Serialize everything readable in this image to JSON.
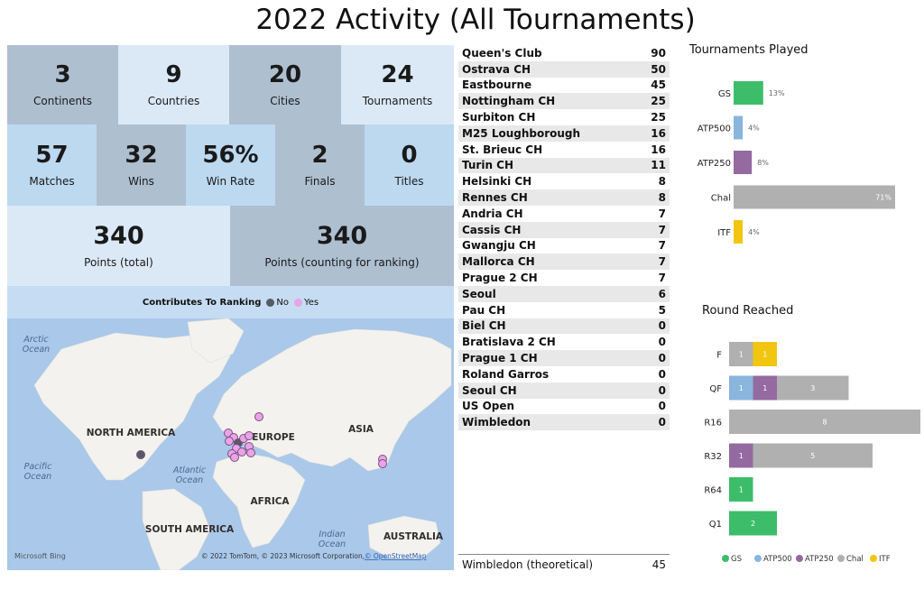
{
  "title": "2022 Activity (All Tournaments)",
  "kpis_row1": [
    {
      "value": "3",
      "label": "Continents"
    },
    {
      "value": "9",
      "label": "Countries"
    },
    {
      "value": "20",
      "label": "Cities"
    },
    {
      "value": "24",
      "label": "Tournaments"
    }
  ],
  "kpis_row2": [
    {
      "value": "57",
      "label": "Matches"
    },
    {
      "value": "32",
      "label": "Wins"
    },
    {
      "value": "56%",
      "label": "Win Rate"
    },
    {
      "value": "2",
      "label": "Finals"
    },
    {
      "value": "0",
      "label": "Titles"
    }
  ],
  "kpis_row3": [
    {
      "value": "340",
      "label": "Points (total)"
    },
    {
      "value": "340",
      "label": "Points (counting for ranking)"
    }
  ],
  "map": {
    "legend_title": "Contributes To Ranking",
    "legend_no": "No",
    "legend_yes": "Yes",
    "colors": {
      "no": "#555a66",
      "yes": "#e9a3e8",
      "land": "#f3f2ee",
      "water": "#a9c8ea"
    },
    "labels": {
      "arctic_ocean": [
        "Arctic",
        "Ocean"
      ],
      "pacific_ocean": [
        "Pacific",
        "Ocean"
      ],
      "atlantic_ocean": [
        "Atlantic",
        "Ocean"
      ],
      "indian_ocean": [
        "Indian",
        "Ocean"
      ],
      "north_america": "NORTH AMERICA",
      "europe": "EUROPE",
      "asia": "ASIA",
      "africa": "AFRICA",
      "south_america": "SOUTH AMERICA",
      "australia": "AUSTRALIA"
    },
    "bing": "Microsoft Bing",
    "copyright": "© 2022 TomTom, © 2023 Microsoft Corporation,",
    "osm": "© OpenStreetMap"
  },
  "points_table": [
    {
      "name": "Queen's Club",
      "points": 90
    },
    {
      "name": "Ostrava CH",
      "points": 50
    },
    {
      "name": "Eastbourne",
      "points": 45
    },
    {
      "name": "Nottingham CH",
      "points": 25
    },
    {
      "name": "Surbiton CH",
      "points": 25
    },
    {
      "name": "M25 Loughborough",
      "points": 16
    },
    {
      "name": "St. Brieuc CH",
      "points": 16
    },
    {
      "name": "Turin CH",
      "points": 11
    },
    {
      "name": "Helsinki CH",
      "points": 8
    },
    {
      "name": "Rennes CH",
      "points": 8
    },
    {
      "name": "Andria CH",
      "points": 7
    },
    {
      "name": "Cassis CH",
      "points": 7
    },
    {
      "name": "Gwangju CH",
      "points": 7
    },
    {
      "name": "Mallorca CH",
      "points": 7
    },
    {
      "name": "Prague 2 CH",
      "points": 7
    },
    {
      "name": "Seoul",
      "points": 6
    },
    {
      "name": "Pau CH",
      "points": 5
    },
    {
      "name": "Biel CH",
      "points": 0
    },
    {
      "name": "Bratislava 2 CH",
      "points": 0
    },
    {
      "name": "Prague 1 CH",
      "points": 0
    },
    {
      "name": "Roland Garros",
      "points": 0
    },
    {
      "name": "Seoul CH",
      "points": 0
    },
    {
      "name": "US Open",
      "points": 0
    },
    {
      "name": "Wimbledon",
      "points": 0
    }
  ],
  "footer_row": {
    "name": "Wimbledon (theoretical)",
    "points": "45"
  },
  "chart_data": [
    {
      "type": "bar",
      "title": "Tournaments Played",
      "categories": [
        "GS",
        "ATP500",
        "ATP250",
        "Chal",
        "ITF"
      ],
      "values": [
        13,
        4,
        8,
        71,
        4
      ],
      "value_labels": [
        "13%",
        "4%",
        "8%",
        "71%",
        "4%"
      ],
      "colors": [
        "#3dbd6a",
        "#8ab5dd",
        "#946aa0",
        "#b0b0b0",
        "#f2c511"
      ]
    },
    {
      "type": "bar",
      "title": "Round Reached",
      "categories": [
        "F",
        "QF",
        "R16",
        "R32",
        "R64",
        "Q1"
      ],
      "series": [
        {
          "name": "GS",
          "values": [
            0,
            0,
            0,
            0,
            1,
            2
          ]
        },
        {
          "name": "ATP500",
          "values": [
            0,
            1,
            0,
            0,
            0,
            0
          ]
        },
        {
          "name": "ATP250",
          "values": [
            0,
            1,
            0,
            1,
            0,
            0
          ]
        },
        {
          "name": "Chal",
          "values": [
            1,
            3,
            8,
            5,
            0,
            0
          ]
        },
        {
          "name": "ITF",
          "values": [
            1,
            0,
            0,
            0,
            0,
            0
          ]
        }
      ],
      "colors": [
        "#3dbd6a",
        "#8ab5dd",
        "#946aa0",
        "#b0b0b0",
        "#f2c511"
      ],
      "legend": "bottom"
    }
  ]
}
